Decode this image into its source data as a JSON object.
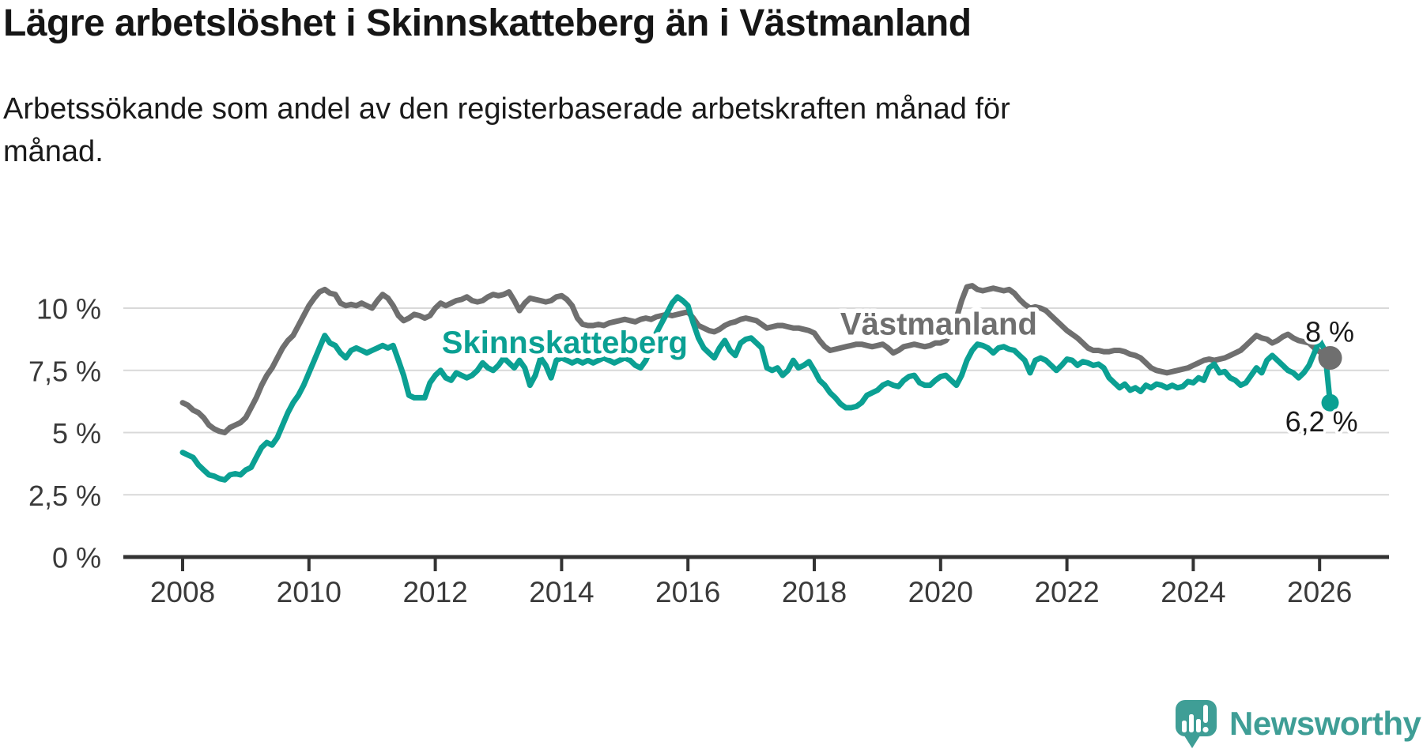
{
  "header": {
    "title": "Lägre arbetslöshet i Skinnskatteberg än i Västmanland",
    "subtitle_lines": [
      "Arbetssökande som andel av den registerbaserade arbetskraften månad för",
      "månad."
    ]
  },
  "colors": {
    "grid": "#d9d9d9",
    "axis": "#333333",
    "tick_label": "#3a3a3a",
    "annotation": "#1a1a1a",
    "skinnskatteberg_teal": "#0ba093",
    "vastmanland_gray": "#6f6f6f",
    "brand_teal": "#3f9e96"
  },
  "chart_data": {
    "type": "line",
    "title": "Lägre arbetslöshet i Skinnskatteberg än i Västmanland",
    "subtitle": "Arbetssökande som andel av den registerbaserade arbetskraften månad för månad.",
    "unit": "%",
    "grid": true,
    "x_start_year": 2008.0,
    "x_step_years": 0.0833333,
    "x_tick_years": [
      2008,
      2010,
      2012,
      2014,
      2016,
      2018,
      2020,
      2022,
      2024,
      2026
    ],
    "y_ticks": [
      {
        "value": 0,
        "label": "0 %"
      },
      {
        "value": 2.5,
        "label": "2,5 %"
      },
      {
        "value": 5,
        "label": "5 %"
      },
      {
        "value": 7.5,
        "label": "7,5 %"
      },
      {
        "value": 10,
        "label": "10 %"
      }
    ],
    "y_range": [
      0,
      11.5
    ],
    "legend_position": "inline-labels",
    "series": [
      {
        "name": "Västmanland",
        "color": "#6f6f6f",
        "label_pos": {
          "year": 2019.97,
          "value": 9.35
        },
        "end_label": "8 %",
        "end_label_pos": {
          "year": 2026.16,
          "value": 9.05
        },
        "end_dot_radius": 15,
        "values": [
          6.2,
          6.1,
          5.9,
          5.8,
          5.6,
          5.3,
          5.15,
          5.05,
          5.0,
          5.2,
          5.3,
          5.4,
          5.6,
          6.0,
          6.4,
          6.9,
          7.3,
          7.6,
          8.0,
          8.4,
          8.7,
          8.9,
          9.3,
          9.7,
          10.1,
          10.4,
          10.65,
          10.75,
          10.6,
          10.55,
          10.2,
          10.1,
          10.15,
          10.1,
          10.2,
          10.1,
          10.0,
          10.3,
          10.55,
          10.4,
          10.1,
          9.7,
          9.5,
          9.6,
          9.75,
          9.7,
          9.6,
          9.7,
          10.0,
          10.2,
          10.1,
          10.2,
          10.3,
          10.35,
          10.45,
          10.3,
          10.25,
          10.3,
          10.45,
          10.55,
          10.5,
          10.55,
          10.65,
          10.3,
          9.9,
          10.2,
          10.4,
          10.35,
          10.3,
          10.25,
          10.3,
          10.45,
          10.5,
          10.35,
          10.1,
          9.6,
          9.35,
          9.3,
          9.3,
          9.35,
          9.3,
          9.4,
          9.45,
          9.5,
          9.55,
          9.5,
          9.45,
          9.55,
          9.6,
          9.55,
          9.65,
          9.7,
          9.75,
          9.7,
          9.75,
          9.8,
          9.85,
          9.6,
          9.3,
          9.2,
          9.1,
          9.05,
          9.15,
          9.3,
          9.4,
          9.45,
          9.55,
          9.6,
          9.55,
          9.5,
          9.35,
          9.2,
          9.25,
          9.3,
          9.3,
          9.25,
          9.2,
          9.2,
          9.15,
          9.1,
          9.0,
          8.7,
          8.45,
          8.3,
          8.35,
          8.4,
          8.45,
          8.5,
          8.55,
          8.55,
          8.5,
          8.45,
          8.5,
          8.55,
          8.4,
          8.2,
          8.3,
          8.45,
          8.5,
          8.55,
          8.5,
          8.45,
          8.5,
          8.6,
          8.6,
          8.7,
          9.0,
          9.6,
          10.3,
          10.85,
          10.9,
          10.75,
          10.7,
          10.75,
          10.8,
          10.75,
          10.7,
          10.75,
          10.6,
          10.35,
          10.15,
          10.0,
          10.05,
          10.0,
          9.9,
          9.7,
          9.5,
          9.3,
          9.1,
          8.95,
          8.8,
          8.6,
          8.4,
          8.3,
          8.3,
          8.25,
          8.25,
          8.3,
          8.3,
          8.25,
          8.15,
          8.1,
          8.0,
          7.8,
          7.6,
          7.5,
          7.45,
          7.4,
          7.45,
          7.5,
          7.55,
          7.6,
          7.7,
          7.8,
          7.9,
          7.95,
          7.9,
          7.95,
          8.0,
          8.1,
          8.2,
          8.3,
          8.5,
          8.7,
          8.9,
          8.8,
          8.75,
          8.6,
          8.7,
          8.85,
          8.95,
          8.8,
          8.7,
          8.65,
          8.6,
          8.4,
          8.25,
          8.1,
          8.0
        ]
      },
      {
        "name": "Skinnskatteberg",
        "color": "#0ba093",
        "label_pos": {
          "year": 2014.05,
          "value": 8.6
        },
        "end_label": "6,2 %",
        "end_label_pos": {
          "year": 2026.03,
          "value": 5.45
        },
        "end_dot_radius": 11,
        "values": [
          4.2,
          4.1,
          4.0,
          3.7,
          3.5,
          3.3,
          3.25,
          3.15,
          3.1,
          3.3,
          3.35,
          3.3,
          3.5,
          3.6,
          4.0,
          4.4,
          4.6,
          4.5,
          4.8,
          5.3,
          5.8,
          6.2,
          6.5,
          6.9,
          7.4,
          7.9,
          8.4,
          8.9,
          8.6,
          8.5,
          8.2,
          8.0,
          8.3,
          8.4,
          8.3,
          8.2,
          8.3,
          8.4,
          8.5,
          8.4,
          8.5,
          7.9,
          7.3,
          6.5,
          6.4,
          6.4,
          6.4,
          7.0,
          7.3,
          7.5,
          7.2,
          7.1,
          7.4,
          7.3,
          7.2,
          7.3,
          7.5,
          7.8,
          7.6,
          7.5,
          7.7,
          8.0,
          7.8,
          7.6,
          7.9,
          7.6,
          6.9,
          7.3,
          8.0,
          7.7,
          7.2,
          7.9,
          8.0,
          7.9,
          7.8,
          7.9,
          7.8,
          7.9,
          7.8,
          7.9,
          8.0,
          7.9,
          7.8,
          7.9,
          8.0,
          7.9,
          7.7,
          7.6,
          7.9,
          8.4,
          9.0,
          9.4,
          9.8,
          10.2,
          10.45,
          10.3,
          10.1,
          9.4,
          8.8,
          8.4,
          8.2,
          8.0,
          8.4,
          8.7,
          8.3,
          8.1,
          8.6,
          8.75,
          8.8,
          8.6,
          8.4,
          7.6,
          7.5,
          7.6,
          7.3,
          7.5,
          7.9,
          7.6,
          7.7,
          7.85,
          7.5,
          7.1,
          6.9,
          6.6,
          6.4,
          6.15,
          6.0,
          6.0,
          6.05,
          6.2,
          6.5,
          6.6,
          6.7,
          6.9,
          7.0,
          6.9,
          6.85,
          7.1,
          7.25,
          7.3,
          7.0,
          6.9,
          6.9,
          7.1,
          7.25,
          7.3,
          7.1,
          6.9,
          7.3,
          7.9,
          8.3,
          8.55,
          8.5,
          8.4,
          8.2,
          8.4,
          8.45,
          8.35,
          8.3,
          8.1,
          7.9,
          7.4,
          7.9,
          8.0,
          7.9,
          7.7,
          7.5,
          7.7,
          7.95,
          7.9,
          7.7,
          7.85,
          7.8,
          7.7,
          7.75,
          7.6,
          7.2,
          7.0,
          6.8,
          6.95,
          6.7,
          6.8,
          6.65,
          6.9,
          6.8,
          6.95,
          6.9,
          6.8,
          6.9,
          6.8,
          6.85,
          7.05,
          7.0,
          7.2,
          7.1,
          7.6,
          7.75,
          7.4,
          7.45,
          7.2,
          7.1,
          6.9,
          7.0,
          7.3,
          7.6,
          7.4,
          7.9,
          8.1,
          7.9,
          7.7,
          7.5,
          7.4,
          7.2,
          7.4,
          7.7,
          8.2,
          8.7,
          8.3,
          6.2
        ]
      }
    ]
  },
  "footer": {
    "brand": "Newsworthy"
  }
}
